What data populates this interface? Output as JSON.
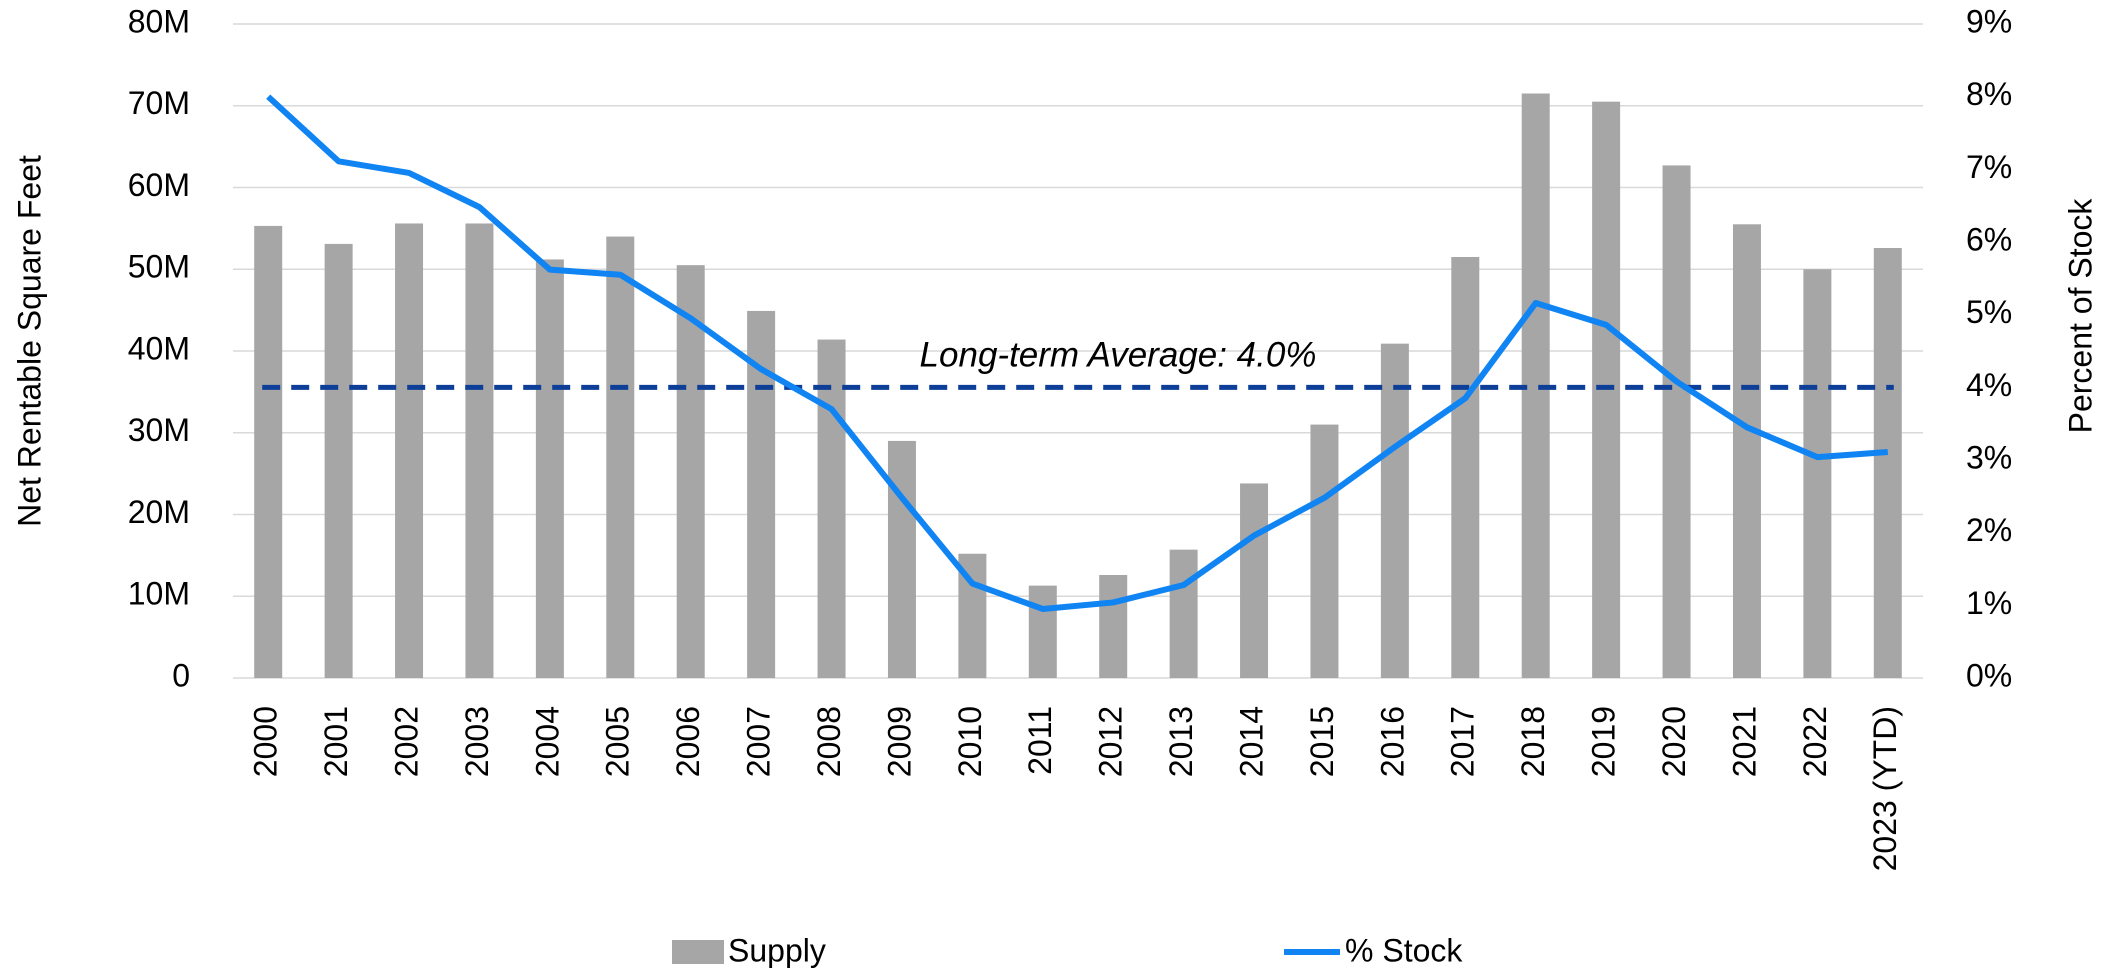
{
  "chart_data": {
    "type": "bar",
    "categories": [
      "2000",
      "2001",
      "2002",
      "2003",
      "2004",
      "2005",
      "2006",
      "2007",
      "2008",
      "2009",
      "2010",
      "2011",
      "2012",
      "2013",
      "2014",
      "2015",
      "2016",
      "2017",
      "2018",
      "2019",
      "2020",
      "2021",
      "2022",
      "2023 (YTD)"
    ],
    "series": [
      {
        "name": "Supply",
        "type": "bar",
        "color": "#a6a6a6",
        "values": [
          55300000,
          53100000,
          55600000,
          55600000,
          51200000,
          54000000,
          50500000,
          44900000,
          41400000,
          29000000,
          15200000,
          11300000,
          12600000,
          15700000,
          23800000,
          31000000,
          40900000,
          51500000,
          71500000,
          70500000,
          62700000,
          55500000,
          50000000,
          52600000
        ]
      },
      {
        "name": "% Stock",
        "type": "line",
        "axis": "y2",
        "color": "#0f84f2",
        "values": [
          8.0,
          7.11,
          6.95,
          6.48,
          5.62,
          5.55,
          4.95,
          4.25,
          3.7,
          2.48,
          1.3,
          0.95,
          1.04,
          1.28,
          1.96,
          2.48,
          3.18,
          3.85,
          5.16,
          4.86,
          4.08,
          3.45,
          3.04,
          3.11
        ]
      }
    ],
    "reference_line": {
      "value": 4.0,
      "axis": "y2",
      "color": "#0d3f99",
      "label": "Long-term Average: 4.0%"
    },
    "ylabel": "Net Rentable Square Feet",
    "y2label": "Percent of Stock",
    "ylim": [
      0,
      80000000
    ],
    "yticks": [
      0,
      {
        "value": 10000000,
        "label": "10M"
      },
      {
        "value": 20000000,
        "label": "20M"
      },
      {
        "value": 30000000,
        "label": "30M"
      },
      {
        "value": 40000000,
        "label": "40M"
      },
      {
        "value": 50000000,
        "label": "50M"
      },
      {
        "value": 60000000,
        "label": "60M"
      },
      {
        "value": 70000000,
        "label": "70M"
      },
      {
        "value": 80000000,
        "label": "80M"
      }
    ],
    "y2lim": [
      0,
      9
    ],
    "y2ticks": [
      {
        "value": 0,
        "label": "0%"
      },
      {
        "value": 1,
        "label": "1%"
      },
      {
        "value": 2,
        "label": "2%"
      },
      {
        "value": 3,
        "label": "3%"
      },
      {
        "value": 4,
        "label": "4%"
      },
      {
        "value": 5,
        "label": "5%"
      },
      {
        "value": 6,
        "label": "6%"
      },
      {
        "value": 7,
        "label": "7%"
      },
      {
        "value": 8,
        "label": "8%"
      },
      {
        "value": 9,
        "label": "9%"
      }
    ],
    "grid": true,
    "legend": "bottom"
  }
}
